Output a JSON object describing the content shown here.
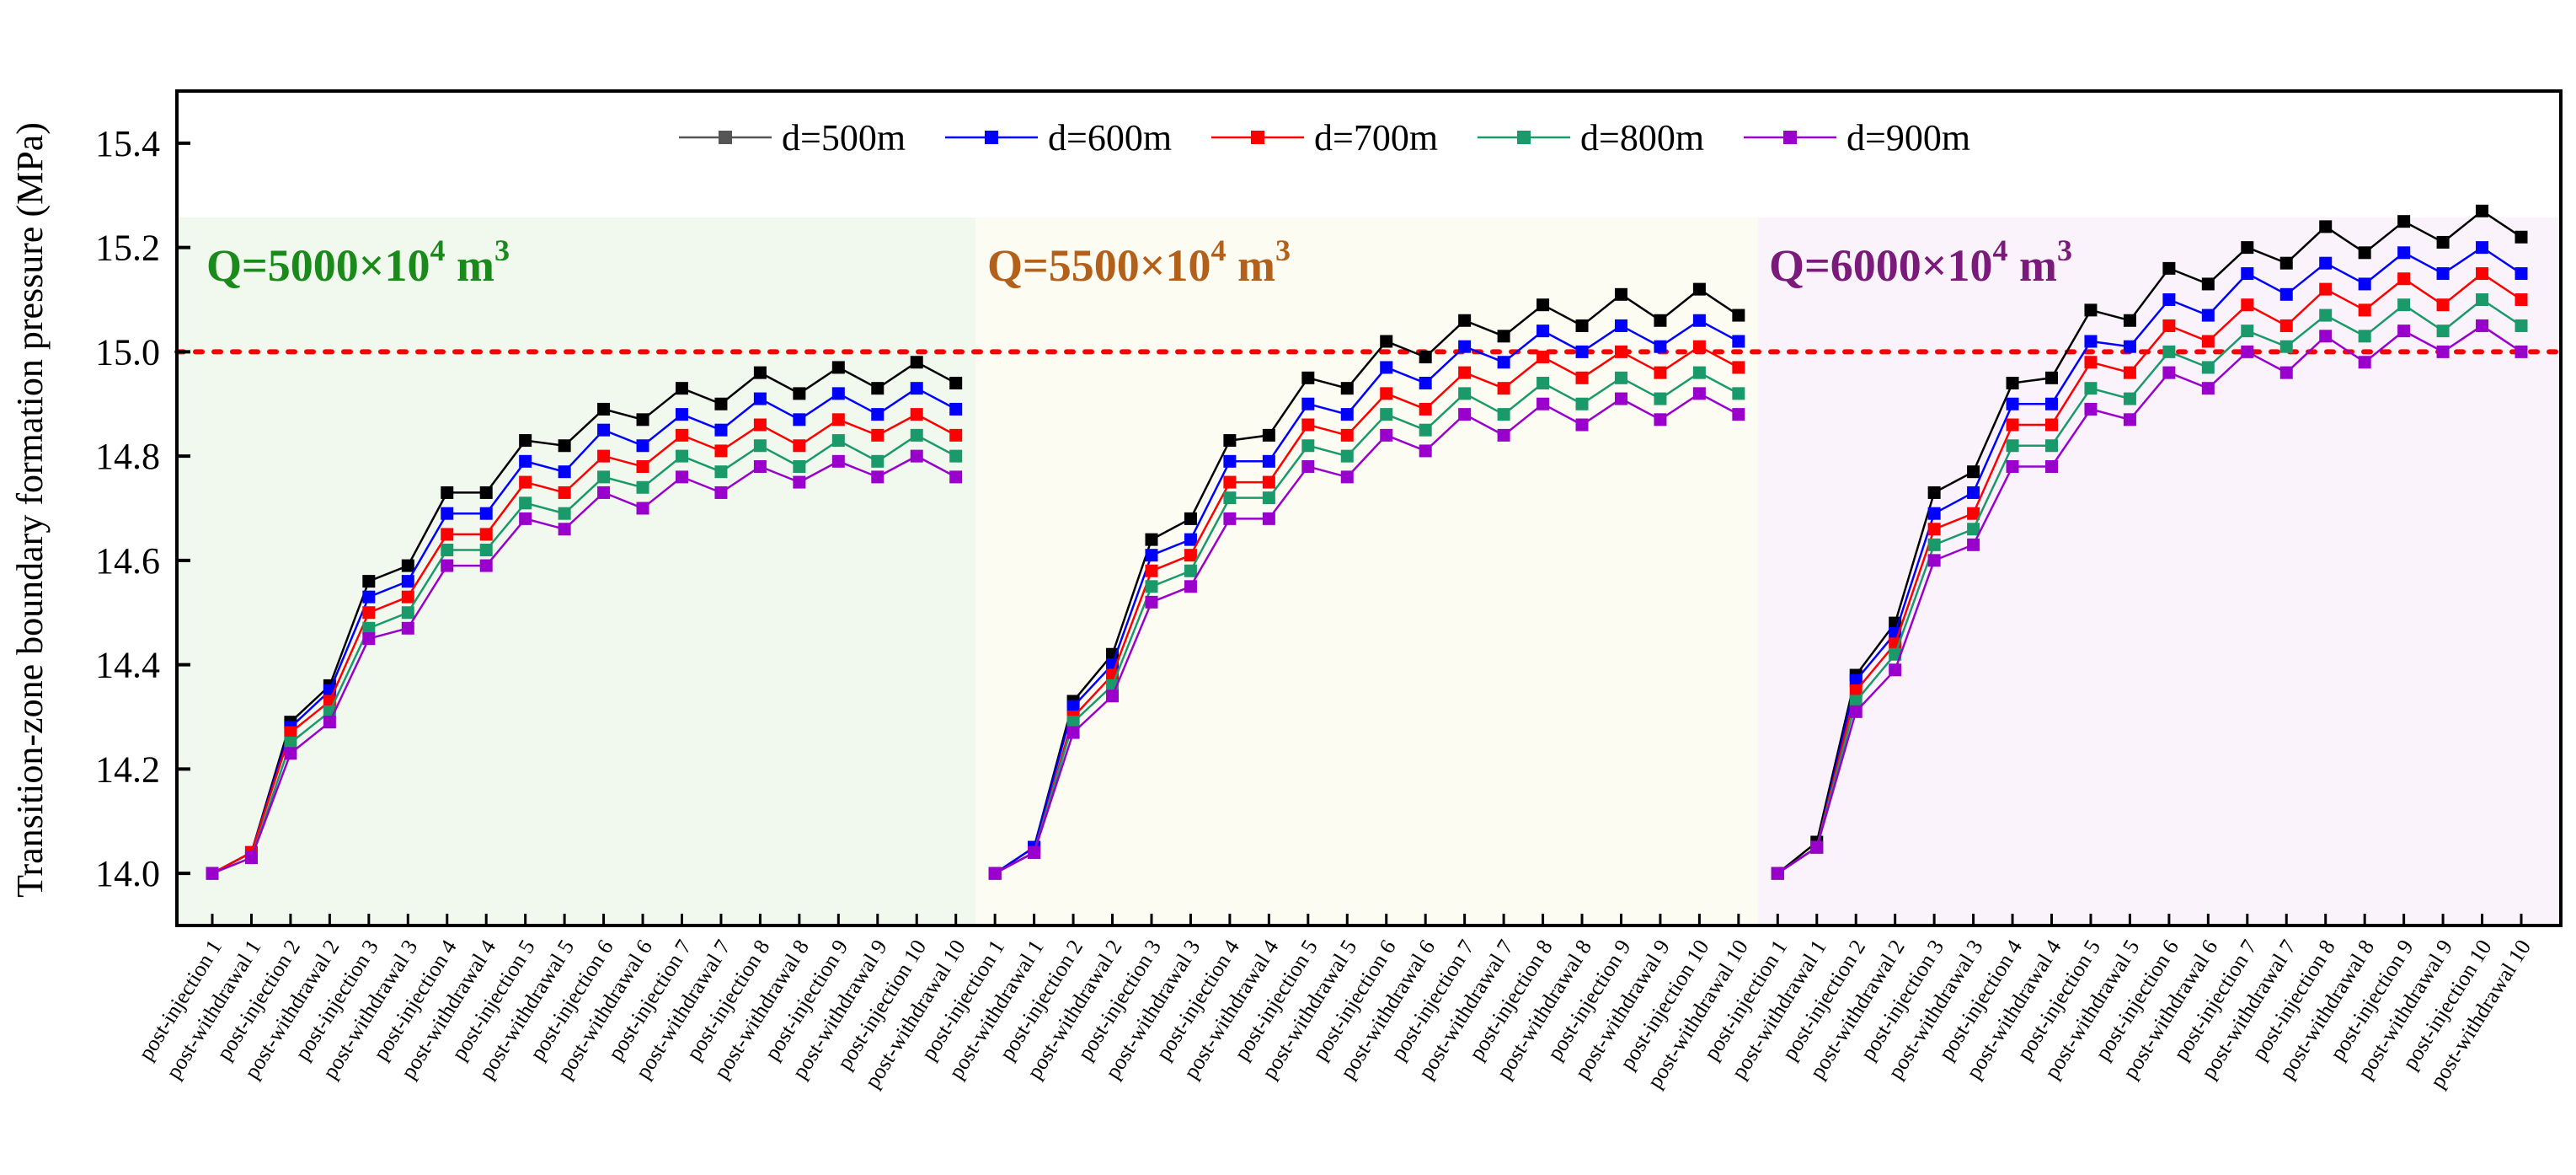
{
  "chart_data": {
    "type": "line",
    "title": "",
    "xlabel": "",
    "ylabel": "Transition-zone boundary formation pressure (MPa)",
    "ylim": [
      13.9,
      15.5
    ],
    "yticks": [
      "14.0",
      "14.2",
      "14.4",
      "14.6",
      "14.8",
      "15.0",
      "15.2",
      "15.4"
    ],
    "legend_position": "top-center",
    "threshold": {
      "value": 15.0,
      "color": "#ff0000",
      "style": "dotted"
    },
    "categories": [
      "post-injection 1",
      "post-withdrawal 1",
      "post-injection 2",
      "post-withdrawal 2",
      "post-injection 3",
      "post-withdrawal 3",
      "post-injection 4",
      "post-withdrawal 4",
      "post-injection 5",
      "post-withdrawal 5",
      "post-injection 6",
      "post-withdrawal 6",
      "post-injection 7",
      "post-withdrawal 7",
      "post-injection 8",
      "post-withdrawal 8",
      "post-injection 9",
      "post-withdrawal 9",
      "post-injection 10",
      "post-withdrawal 10"
    ],
    "groups": [
      {
        "label": "Q=5000×10",
        "label_sup": "4",
        "label_unit": " m",
        "label_unit_sup": "3",
        "label_color": "#1a8a1a",
        "background": "#f1f8ee",
        "series": [
          {
            "name": "d=500m",
            "values": [
              14.0,
              14.04,
              14.29,
              14.36,
              14.56,
              14.59,
              14.73,
              14.73,
              14.83,
              14.82,
              14.89,
              14.87,
              14.93,
              14.9,
              14.96,
              14.92,
              14.97,
              14.93,
              14.98,
              14.94
            ]
          },
          {
            "name": "d=600m",
            "values": [
              14.0,
              14.04,
              14.28,
              14.35,
              14.53,
              14.56,
              14.69,
              14.69,
              14.79,
              14.77,
              14.85,
              14.82,
              14.88,
              14.85,
              14.91,
              14.87,
              14.92,
              14.88,
              14.93,
              14.89
            ]
          },
          {
            "name": "d=700m",
            "values": [
              14.0,
              14.04,
              14.27,
              14.33,
              14.5,
              14.53,
              14.65,
              14.65,
              14.75,
              14.73,
              14.8,
              14.78,
              14.84,
              14.81,
              14.86,
              14.82,
              14.87,
              14.84,
              14.88,
              14.84
            ]
          },
          {
            "name": "d=800m",
            "values": [
              14.0,
              14.03,
              14.25,
              14.31,
              14.47,
              14.5,
              14.62,
              14.62,
              14.71,
              14.69,
              14.76,
              14.74,
              14.8,
              14.77,
              14.82,
              14.78,
              14.83,
              14.79,
              14.84,
              14.8
            ]
          },
          {
            "name": "d=900m",
            "values": [
              14.0,
              14.03,
              14.23,
              14.29,
              14.45,
              14.47,
              14.59,
              14.59,
              14.68,
              14.66,
              14.73,
              14.7,
              14.76,
              14.73,
              14.78,
              14.75,
              14.79,
              14.76,
              14.8,
              14.76
            ]
          }
        ]
      },
      {
        "label": "Q=5500×10",
        "label_sup": "4",
        "label_unit": " m",
        "label_unit_sup": "3",
        "label_color": "#b3601a",
        "background": "#fcfcf3",
        "series": [
          {
            "name": "d=500m",
            "values": [
              14.0,
              14.05,
              14.33,
              14.42,
              14.64,
              14.68,
              14.83,
              14.84,
              14.95,
              14.93,
              15.02,
              14.99,
              15.06,
              15.03,
              15.09,
              15.05,
              15.11,
              15.06,
              15.12,
              15.07
            ]
          },
          {
            "name": "d=600m",
            "values": [
              14.0,
              14.05,
              14.32,
              14.4,
              14.61,
              14.64,
              14.79,
              14.79,
              14.9,
              14.88,
              14.97,
              14.94,
              15.01,
              14.98,
              15.04,
              15.0,
              15.05,
              15.01,
              15.06,
              15.02
            ]
          },
          {
            "name": "d=700m",
            "values": [
              14.0,
              14.04,
              14.3,
              14.38,
              14.58,
              14.61,
              14.75,
              14.75,
              14.86,
              14.84,
              14.92,
              14.89,
              14.96,
              14.93,
              14.99,
              14.95,
              15.0,
              14.96,
              15.01,
              14.97
            ]
          },
          {
            "name": "d=800m",
            "values": [
              14.0,
              14.04,
              14.29,
              14.36,
              14.55,
              14.58,
              14.72,
              14.72,
              14.82,
              14.8,
              14.88,
              14.85,
              14.92,
              14.88,
              14.94,
              14.9,
              14.95,
              14.91,
              14.96,
              14.92
            ]
          },
          {
            "name": "d=900m",
            "values": [
              14.0,
              14.04,
              14.27,
              14.34,
              14.52,
              14.55,
              14.68,
              14.68,
              14.78,
              14.76,
              14.84,
              14.81,
              14.88,
              14.84,
              14.9,
              14.86,
              14.91,
              14.87,
              14.92,
              14.88
            ]
          }
        ]
      },
      {
        "label": "Q=6000×10",
        "label_sup": "4",
        "label_unit": " m",
        "label_unit_sup": "3",
        "label_color": "#7a1a7a",
        "background": "#fbf3fb",
        "series": [
          {
            "name": "d=500m",
            "values": [
              14.0,
              14.06,
              14.38,
              14.48,
              14.73,
              14.77,
              14.94,
              14.95,
              15.08,
              15.06,
              15.16,
              15.13,
              15.2,
              15.17,
              15.24,
              15.19,
              15.25,
              15.21,
              15.27,
              15.22
            ]
          },
          {
            "name": "d=600m",
            "values": [
              14.0,
              14.05,
              14.37,
              14.46,
              14.69,
              14.73,
              14.9,
              14.9,
              15.02,
              15.01,
              15.1,
              15.07,
              15.15,
              15.11,
              15.17,
              15.13,
              15.19,
              15.15,
              15.2,
              15.15
            ]
          },
          {
            "name": "d=700m",
            "values": [
              14.0,
              14.05,
              14.35,
              14.44,
              14.66,
              14.69,
              14.86,
              14.86,
              14.98,
              14.96,
              15.05,
              15.02,
              15.09,
              15.05,
              15.12,
              15.08,
              15.14,
              15.09,
              15.15,
              15.1
            ]
          },
          {
            "name": "d=800m",
            "values": [
              14.0,
              14.05,
              14.33,
              14.42,
              14.63,
              14.66,
              14.82,
              14.82,
              14.93,
              14.91,
              15.0,
              14.97,
              15.04,
              15.01,
              15.07,
              15.03,
              15.09,
              15.04,
              15.1,
              15.05
            ]
          },
          {
            "name": "d=900m",
            "values": [
              14.0,
              14.05,
              14.31,
              14.39,
              14.6,
              14.63,
              14.78,
              14.78,
              14.89,
              14.87,
              14.96,
              14.93,
              15.0,
              14.96,
              15.03,
              14.98,
              15.04,
              15.0,
              15.05,
              15.0
            ]
          }
        ]
      }
    ],
    "legend": [
      {
        "name": "d=500m",
        "color": "#555555",
        "marker_color": "#555555"
      },
      {
        "name": "d=600m",
        "color": "#0000ff",
        "marker_color": "#0000ff"
      },
      {
        "name": "d=700m",
        "color": "#ff0000",
        "marker_color": "#ff0000"
      },
      {
        "name": "d=800m",
        "color": "#1a9a6a",
        "marker_color": "#1a9a6a"
      },
      {
        "name": "d=900m",
        "color": "#9900cc",
        "marker_color": "#9900cc"
      }
    ],
    "series_colors": [
      "#000000",
      "#0000ff",
      "#ff0000",
      "#1a9a6a",
      "#9900cc"
    ],
    "series_marker_colors": [
      "#000000",
      "#0000ff",
      "#ff0000",
      "#1a9a6a",
      "#9900cc"
    ]
  }
}
